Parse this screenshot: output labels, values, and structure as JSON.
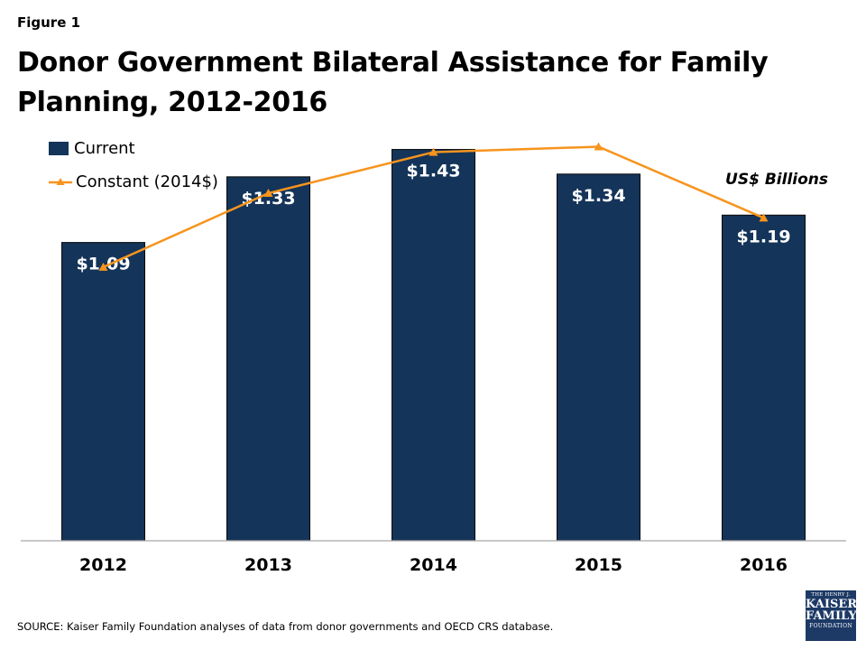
{
  "figure_label": "Figure 1",
  "title": "Donor Government Bilateral Assistance for Family Planning, 2012-2016",
  "units_label": "US$ Billions",
  "source": "SOURCE: Kaiser Family Foundation analyses of data from donor governments and OECD CRS database.",
  "logo": {
    "line1": "THE HENRY J.",
    "line2": "KAISER",
    "line3": "FAMILY",
    "line4": "FOUNDATION"
  },
  "colors": {
    "bar": "#143459",
    "line": "#f7941d",
    "axis": "#a6a6a6"
  },
  "chart_data": {
    "type": "bar",
    "categories": [
      "2012",
      "2013",
      "2014",
      "2015",
      "2016"
    ],
    "series": [
      {
        "name": "Current",
        "type": "bar",
        "values": [
          1.09,
          1.33,
          1.43,
          1.34,
          1.19
        ],
        "labels": [
          "$1.09",
          "$1.33",
          "$1.43",
          "$1.34",
          "$1.19"
        ]
      },
      {
        "name": "Constant (2014$)",
        "type": "line",
        "marker": "triangle",
        "values": [
          1.0,
          1.27,
          1.42,
          1.44,
          1.18
        ]
      }
    ],
    "ylim": [
      0,
      1.6
    ],
    "grid": false,
    "legend": "top-left"
  }
}
